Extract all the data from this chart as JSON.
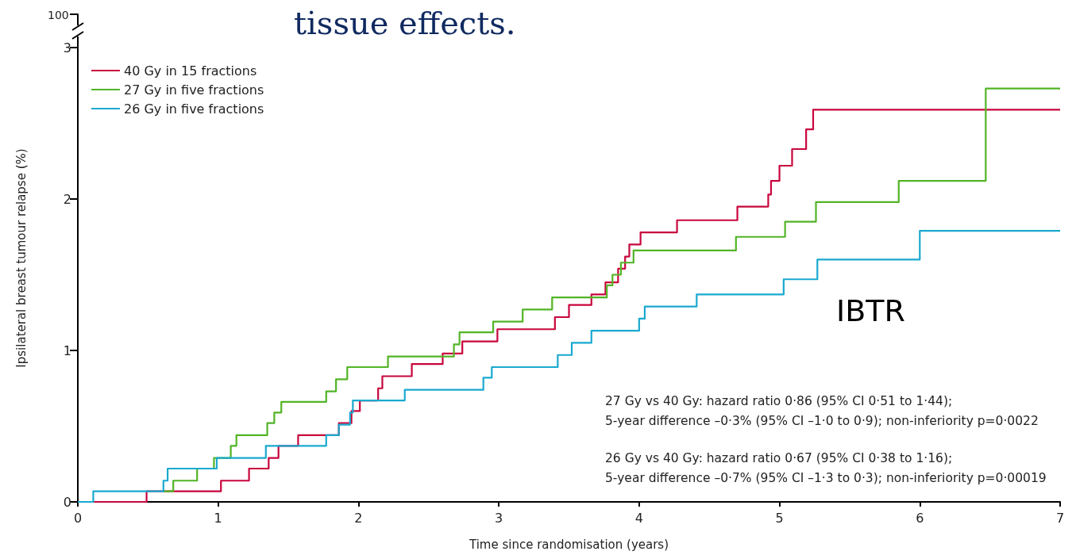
{
  "chart_data": {
    "type": "step",
    "title": "tissue effects.",
    "xlabel": "Time since randomisation (years)",
    "ylabel": "Ipsilateral breast tumour relapse (%)",
    "xlim": [
      0,
      7
    ],
    "xticks": [
      0,
      1,
      2,
      3,
      4,
      5,
      6,
      7
    ],
    "ylim": [
      0,
      3.22
    ],
    "yticks": [
      0,
      1,
      2,
      3
    ],
    "grid": false,
    "legend": "top left",
    "marker": "none",
    "annotations": [
      "100",
      "IBTR",
      "27 Gy vs 40 Gy: hazard ratio 0·86 (95% CI 0·51 to 1·44);\n5-year difference –0·3% (95% CI –1·0 to 0·9); non-inferiority p=0·0022",
      "26 Gy vs 40 Gy: hazard ratio 0·67 (95% CI 0·38 to 1·16);\n5-year difference –0·7% (95% CI –1·3 to 0·3); non-inferiority p=0·00019"
    ],
    "series": [
      {
        "name": "40 Gy in 15 fractions",
        "color": "#c8063c",
        "x": [
          0,
          0.49,
          1.02,
          1.22,
          1.36,
          1.43,
          1.57,
          1.86,
          1.95,
          2.01,
          2.14,
          2.17,
          2.38,
          2.6,
          2.74,
          2.99,
          3.4,
          3.5,
          3.66,
          3.76,
          3.85,
          3.9,
          3.93,
          4.01,
          4.27,
          4.7,
          4.92,
          4.94,
          5.0,
          5.09,
          5.19,
          5.24,
          7
        ],
        "values": [
          0,
          0.07,
          0.14,
          0.22,
          0.29,
          0.37,
          0.44,
          0.52,
          0.6,
          0.67,
          0.75,
          0.83,
          0.91,
          0.98,
          1.06,
          1.14,
          1.22,
          1.3,
          1.37,
          1.45,
          1.54,
          1.62,
          1.7,
          1.78,
          1.86,
          1.95,
          2.03,
          2.12,
          2.22,
          2.33,
          2.46,
          2.59,
          2.59
        ]
      },
      {
        "name": "27 Gy in five fractions",
        "color": "#52b426",
        "x": [
          0.61,
          0.68,
          0.85,
          0.97,
          1.09,
          1.13,
          1.35,
          1.4,
          1.45,
          1.77,
          1.84,
          1.92,
          2.21,
          2.68,
          2.72,
          2.96,
          3.17,
          3.38,
          3.77,
          3.81,
          3.87,
          3.96,
          4.69,
          5.04,
          5.26,
          5.85,
          6.47,
          7
        ],
        "values": [
          0.07,
          0.14,
          0.22,
          0.29,
          0.37,
          0.44,
          0.52,
          0.59,
          0.66,
          0.73,
          0.81,
          0.89,
          0.96,
          1.04,
          1.12,
          1.19,
          1.27,
          1.35,
          1.43,
          1.5,
          1.58,
          1.66,
          1.75,
          1.85,
          1.98,
          2.12,
          2.73,
          2.73
        ]
      },
      {
        "name": "26 Gy in five fractions",
        "color": "#1aa9d0",
        "x": [
          0,
          0.11,
          0.61,
          0.64,
          0.99,
          1.34,
          1.77,
          1.86,
          1.94,
          1.96,
          2.33,
          2.89,
          2.95,
          3.42,
          3.52,
          3.66,
          4.0,
          4.04,
          4.41,
          5.03,
          5.27,
          6.0,
          7
        ],
        "values": [
          0,
          0.07,
          0.14,
          0.22,
          0.29,
          0.37,
          0.44,
          0.51,
          0.59,
          0.67,
          0.74,
          0.82,
          0.89,
          0.97,
          1.05,
          1.13,
          1.21,
          1.29,
          1.37,
          1.47,
          1.6,
          1.79,
          1.79
        ]
      }
    ]
  }
}
